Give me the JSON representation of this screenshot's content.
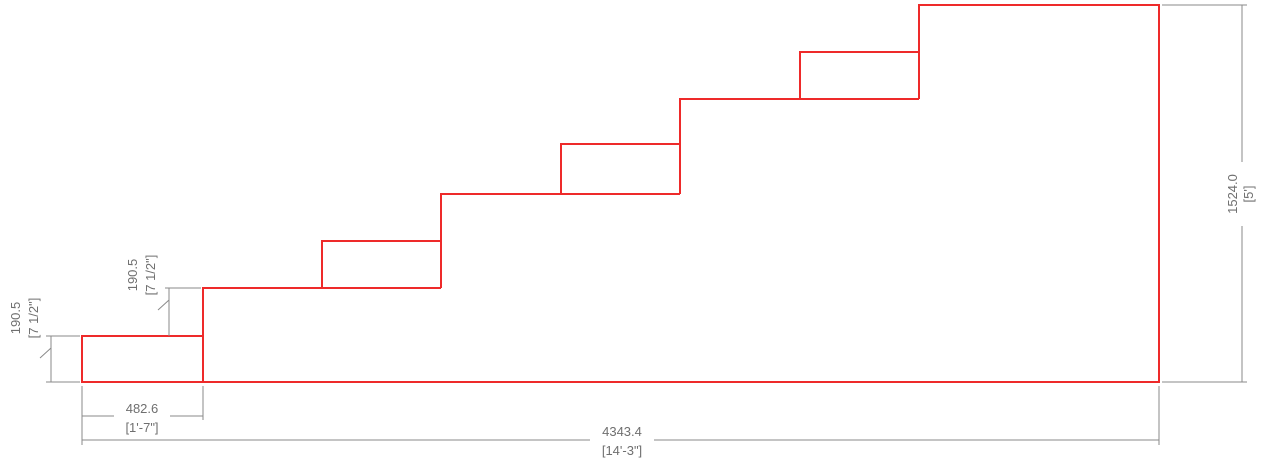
{
  "drawing": {
    "outline_color": "#ee2a2a",
    "dimension_color": "#8a8a8a",
    "dimensions": {
      "overall_width": {
        "metric": "4343.4",
        "imperial": "[14'-3\"]"
      },
      "tread_width": {
        "metric": "482.6",
        "imperial": "[1'-7\"]"
      },
      "overall_height": {
        "metric": "1524.0",
        "imperial": "[5']"
      },
      "first_riser": {
        "metric": "190.5",
        "imperial": "[7 1/2\"]"
      },
      "second_riser": {
        "metric": "190.5",
        "imperial": "[7 1/2\"]"
      }
    }
  }
}
